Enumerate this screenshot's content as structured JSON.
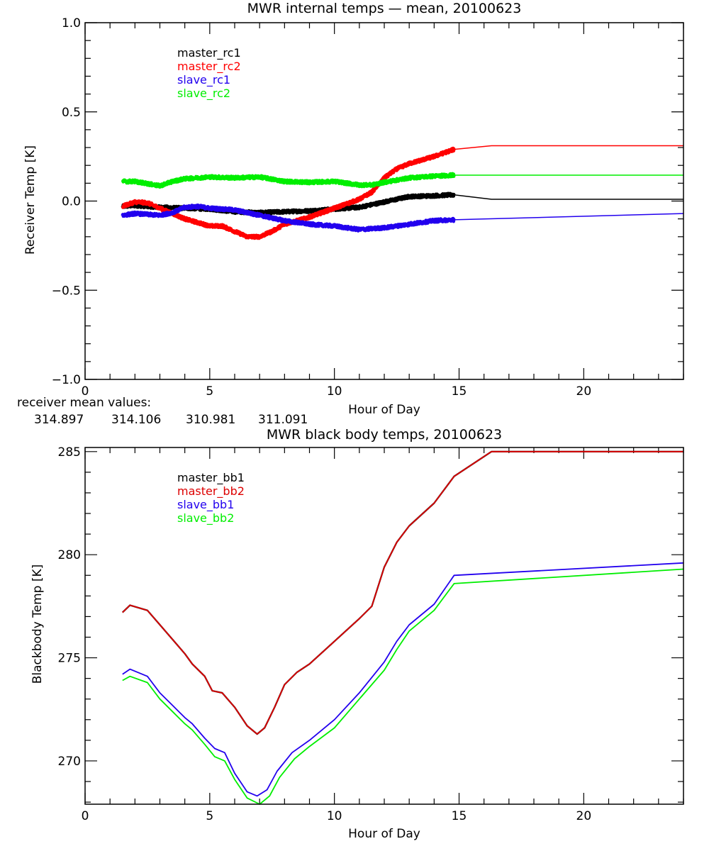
{
  "chart_data": [
    {
      "id": "receiver",
      "type": "line",
      "title": "MWR internal temps — mean, 20100623",
      "xlabel": "Hour of Day",
      "ylabel": "Receiver Temp [K]",
      "xlim": [
        0,
        24
      ],
      "ylim": [
        -1.0,
        1.0
      ],
      "xticks": [
        0,
        5,
        10,
        15,
        20
      ],
      "xtick_labels": [
        "0",
        "5",
        "10",
        "15",
        "20"
      ],
      "x_minor_step": 1,
      "yticks": [
        -1.0,
        -0.5,
        0.0,
        0.5,
        1.0
      ],
      "ytick_labels": [
        "−1.0",
        "−0.5",
        "0.0",
        "0.5",
        "1.0"
      ],
      "y_minor_step": 0.1,
      "grid": false,
      "legend_position": "top-left",
      "series": [
        {
          "name": "master_rc1",
          "color": "#000000",
          "noisy": true,
          "x": [
            1.5,
            2,
            3,
            4,
            5,
            6,
            7,
            8,
            9,
            10,
            11,
            12,
            13,
            14,
            14.8,
            16.3,
            24
          ],
          "y": [
            -0.03,
            -0.025,
            -0.035,
            -0.04,
            -0.045,
            -0.06,
            -0.065,
            -0.06,
            -0.055,
            -0.045,
            -0.035,
            -0.005,
            0.025,
            0.03,
            0.035,
            0.01,
            0.01
          ]
        },
        {
          "name": "master_rc2",
          "color": "#ff0000",
          "noisy": true,
          "x": [
            1.5,
            2,
            2.5,
            3,
            4,
            5,
            5.5,
            6,
            6.5,
            7,
            7.5,
            8,
            9,
            10,
            11,
            11.5,
            12,
            12.5,
            13,
            14,
            14.8,
            16.3,
            24
          ],
          "y": [
            -0.03,
            -0.005,
            -0.01,
            -0.04,
            -0.1,
            -0.14,
            -0.14,
            -0.17,
            -0.2,
            -0.2,
            -0.17,
            -0.13,
            -0.09,
            -0.04,
            0.01,
            0.05,
            0.13,
            0.18,
            0.21,
            0.25,
            0.29,
            0.31,
            0.31
          ]
        },
        {
          "name": "slave_rc1",
          "color": "#2200ee",
          "noisy": true,
          "x": [
            1.5,
            2,
            3,
            3.5,
            4,
            4.5,
            5,
            6,
            7,
            8,
            9,
            10,
            11,
            12,
            13,
            14,
            14.8,
            24
          ],
          "y": [
            -0.08,
            -0.07,
            -0.08,
            -0.065,
            -0.035,
            -0.03,
            -0.04,
            -0.05,
            -0.08,
            -0.11,
            -0.13,
            -0.14,
            -0.16,
            -0.15,
            -0.13,
            -0.11,
            -0.105,
            -0.07
          ]
        },
        {
          "name": "slave_rc2",
          "color": "#00ee00",
          "noisy": true,
          "x": [
            1.5,
            2,
            3,
            3.5,
            4,
            5,
            6,
            7,
            8,
            9,
            10,
            11,
            11.5,
            12,
            13,
            14,
            14.8,
            24
          ],
          "y": [
            0.11,
            0.11,
            0.085,
            0.11,
            0.125,
            0.135,
            0.13,
            0.135,
            0.11,
            0.105,
            0.11,
            0.09,
            0.09,
            0.105,
            0.13,
            0.14,
            0.145,
            0.145
          ]
        }
      ],
      "annotations": {
        "label": "receiver mean values:",
        "values": [
          {
            "text": "314.897",
            "color": "#000000"
          },
          {
            "text": "314.106",
            "color": "#ff0000"
          },
          {
            "text": "310.981",
            "color": "#2200ee"
          },
          {
            "text": "311.091",
            "color": "#00ee00"
          }
        ]
      }
    },
    {
      "id": "blackbody",
      "type": "line",
      "title": "MWR black body temps, 20100623",
      "xlabel": "Hour of Day",
      "ylabel": "Blackbody Temp [K]",
      "xlim": [
        0,
        24
      ],
      "ylim": [
        267.9,
        285.2
      ],
      "xticks": [
        0,
        5,
        10,
        15,
        20
      ],
      "xtick_labels": [
        "0",
        "5",
        "10",
        "15",
        "20"
      ],
      "x_minor_step": 1,
      "yticks": [
        270,
        275,
        280,
        285
      ],
      "ytick_labels": [
        "270",
        "275",
        "280",
        "285"
      ],
      "y_minor_step": 1,
      "grid": false,
      "legend_position": "top-left",
      "series": [
        {
          "name": "master_bb1",
          "color": "#000000",
          "noisy": false,
          "x": [
            1.5,
            1.8,
            2.5,
            3,
            3.5,
            4,
            4.3,
            4.8,
            5.1,
            5.5,
            6,
            6.5,
            6.9,
            7.2,
            7.6,
            8,
            8.5,
            9,
            10,
            11,
            11.5,
            12,
            12.5,
            13,
            14,
            14.8,
            16.3,
            24
          ],
          "y": [
            277.2,
            277.55,
            277.3,
            276.6,
            275.9,
            275.2,
            274.7,
            274.1,
            273.4,
            273.3,
            272.6,
            271.7,
            271.3,
            271.6,
            272.6,
            273.7,
            274.3,
            274.7,
            275.8,
            276.9,
            277.5,
            279.4,
            280.6,
            281.4,
            282.5,
            283.8,
            285.0,
            285.0
          ]
        },
        {
          "name": "master_bb2",
          "color": "#dd0000",
          "noisy": false,
          "x": [
            1.5,
            1.8,
            2.5,
            3,
            3.5,
            4,
            4.3,
            4.8,
            5.1,
            5.5,
            6,
            6.5,
            6.9,
            7.2,
            7.6,
            8,
            8.5,
            9,
            10,
            11,
            11.5,
            12,
            12.5,
            13,
            14,
            14.8,
            16.3,
            24
          ],
          "y": [
            277.2,
            277.55,
            277.3,
            276.6,
            275.9,
            275.2,
            274.7,
            274.1,
            273.4,
            273.3,
            272.6,
            271.7,
            271.3,
            271.6,
            272.6,
            273.7,
            274.3,
            274.7,
            275.8,
            276.9,
            277.5,
            279.4,
            280.6,
            281.4,
            282.5,
            283.8,
            285.0,
            285.0
          ]
        },
        {
          "name": "slave_bb1",
          "color": "#2200ee",
          "noisy": false,
          "x": [
            1.5,
            1.8,
            2.5,
            3,
            3.5,
            4,
            4.3,
            4.8,
            5.2,
            5.6,
            6,
            6.5,
            6.9,
            7.3,
            7.7,
            8.3,
            9,
            10,
            11,
            12,
            12.5,
            13,
            14,
            14.8,
            24
          ],
          "y": [
            274.2,
            274.45,
            274.1,
            273.3,
            272.7,
            272.1,
            271.8,
            271.1,
            270.6,
            270.4,
            269.4,
            268.5,
            268.3,
            268.6,
            269.5,
            270.4,
            271.0,
            272.0,
            273.3,
            274.8,
            275.8,
            276.6,
            277.6,
            279.0,
            279.6
          ]
        },
        {
          "name": "slave_bb2",
          "color": "#00ee00",
          "noisy": false,
          "x": [
            1.5,
            1.8,
            2.5,
            3,
            3.5,
            4,
            4.3,
            4.8,
            5.2,
            5.6,
            6,
            6.5,
            7.0,
            7.4,
            7.8,
            8.4,
            9,
            10,
            11,
            12,
            12.5,
            13,
            14,
            14.8,
            24
          ],
          "y": [
            273.9,
            274.1,
            273.8,
            273.0,
            272.4,
            271.8,
            271.5,
            270.8,
            270.2,
            270.0,
            269.1,
            268.2,
            267.9,
            268.3,
            269.2,
            270.1,
            270.7,
            271.6,
            273.0,
            274.4,
            275.4,
            276.3,
            277.3,
            278.6,
            279.3
          ]
        }
      ]
    }
  ]
}
